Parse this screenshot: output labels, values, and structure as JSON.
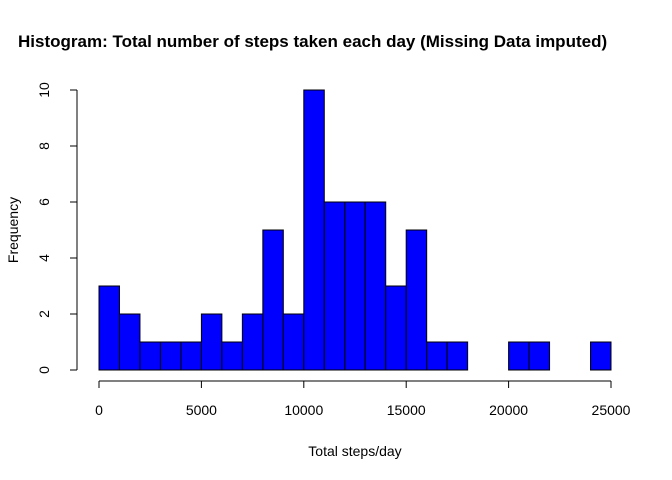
{
  "chart_data": {
    "type": "bar",
    "title": "Histogram: Total number of steps taken each day (Missing Data imputed)",
    "xlabel": "Total steps/day",
    "ylabel": "Frequency",
    "bin_edges": [
      0,
      1000,
      2000,
      3000,
      4000,
      5000,
      6000,
      7000,
      8000,
      9000,
      10000,
      11000,
      12000,
      13000,
      14000,
      15000,
      16000,
      17000,
      18000,
      19000,
      20000,
      21000,
      22000,
      23000,
      24000,
      25000
    ],
    "values": [
      3,
      2,
      1,
      1,
      1,
      2,
      1,
      2,
      5,
      2,
      10,
      6,
      6,
      6,
      3,
      5,
      1,
      1,
      0,
      0,
      1,
      1,
      0,
      0,
      1
    ],
    "xlim": [
      0,
      25000
    ],
    "ylim": [
      0,
      10
    ],
    "x_ticks": [
      0,
      5000,
      10000,
      15000,
      20000,
      25000
    ],
    "y_ticks": [
      0,
      2,
      4,
      6,
      8,
      10
    ],
    "bar_color": "#0000ff",
    "grid": false
  }
}
